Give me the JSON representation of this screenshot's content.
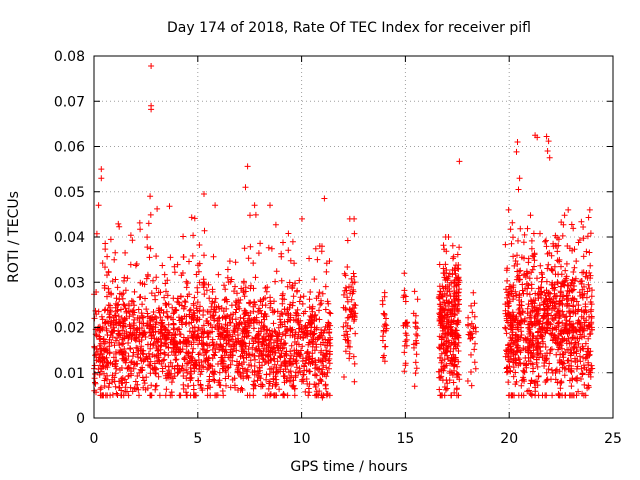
{
  "chart_data": {
    "type": "scatter",
    "title": "Day 174 of 2018, Rate Of TEC Index for receiver pifl",
    "xlabel": "GPS time / hours",
    "ylabel": "ROTI / TECUs",
    "xlim": [
      0,
      25
    ],
    "ylim": [
      0,
      0.08
    ],
    "x_ticks": [
      0,
      5,
      10,
      15,
      20,
      25
    ],
    "x_tick_labels": [
      "0",
      "5",
      "10",
      "15",
      "20",
      "25"
    ],
    "y_ticks": [
      0,
      0.01,
      0.02,
      0.03,
      0.04,
      0.05,
      0.06,
      0.07,
      0.08
    ],
    "y_tick_labels": [
      "0",
      "0.01",
      "0.02",
      "0.03",
      "0.04",
      "0.05",
      "0.06",
      "0.07",
      "0.08"
    ],
    "grid": true,
    "marker": "+",
    "color": "#ff0000",
    "outliers": [
      {
        "x": 2.75,
        "y": 0.0778
      },
      {
        "x": 2.75,
        "y": 0.069
      },
      {
        "x": 2.75,
        "y": 0.0682
      },
      {
        "x": 2.7,
        "y": 0.049
      },
      {
        "x": 0.35,
        "y": 0.055
      },
      {
        "x": 0.35,
        "y": 0.053
      },
      {
        "x": 7.4,
        "y": 0.0556
      },
      {
        "x": 7.3,
        "y": 0.051
      },
      {
        "x": 17.6,
        "y": 0.0567
      },
      {
        "x": 21.25,
        "y": 0.0625
      },
      {
        "x": 21.35,
        "y": 0.062
      },
      {
        "x": 21.8,
        "y": 0.0622
      },
      {
        "x": 21.9,
        "y": 0.0612
      },
      {
        "x": 21.85,
        "y": 0.059
      },
      {
        "x": 21.95,
        "y": 0.0575
      },
      {
        "x": 20.4,
        "y": 0.061
      },
      {
        "x": 20.35,
        "y": 0.0588
      },
      {
        "x": 20.45,
        "y": 0.0505
      },
      {
        "x": 20.5,
        "y": 0.053
      },
      {
        "x": 5.3,
        "y": 0.0495
      },
      {
        "x": 11.1,
        "y": 0.0485
      },
      {
        "x": 11.0,
        "y": 0.0045
      },
      {
        "x": 16.95,
        "y": 0.0062
      }
    ],
    "clusters": [
      {
        "x_range": [
          0.0,
          11.4
        ],
        "y_min": 0.005,
        "y_max": 0.047,
        "y_center": 0.016,
        "count": 1900
      },
      {
        "x_range": [
          12.0,
          12.6
        ],
        "y_min": 0.008,
        "y_max": 0.044,
        "y_center": 0.021,
        "count": 70
      },
      {
        "x_range": [
          13.9,
          14.1
        ],
        "y_min": 0.01,
        "y_max": 0.032,
        "y_center": 0.018,
        "count": 22
      },
      {
        "x_range": [
          14.9,
          15.1
        ],
        "y_min": 0.01,
        "y_max": 0.034,
        "y_center": 0.019,
        "count": 25
      },
      {
        "x_range": [
          15.4,
          15.6
        ],
        "y_min": 0.007,
        "y_max": 0.032,
        "y_center": 0.017,
        "count": 20
      },
      {
        "x_range": [
          16.6,
          17.6
        ],
        "y_min": 0.005,
        "y_max": 0.04,
        "y_center": 0.018,
        "count": 320
      },
      {
        "x_range": [
          18.0,
          18.4
        ],
        "y_min": 0.007,
        "y_max": 0.04,
        "y_center": 0.018,
        "count": 30
      },
      {
        "x_range": [
          19.8,
          24.0
        ],
        "y_min": 0.005,
        "y_max": 0.046,
        "y_center": 0.019,
        "count": 950
      }
    ]
  }
}
